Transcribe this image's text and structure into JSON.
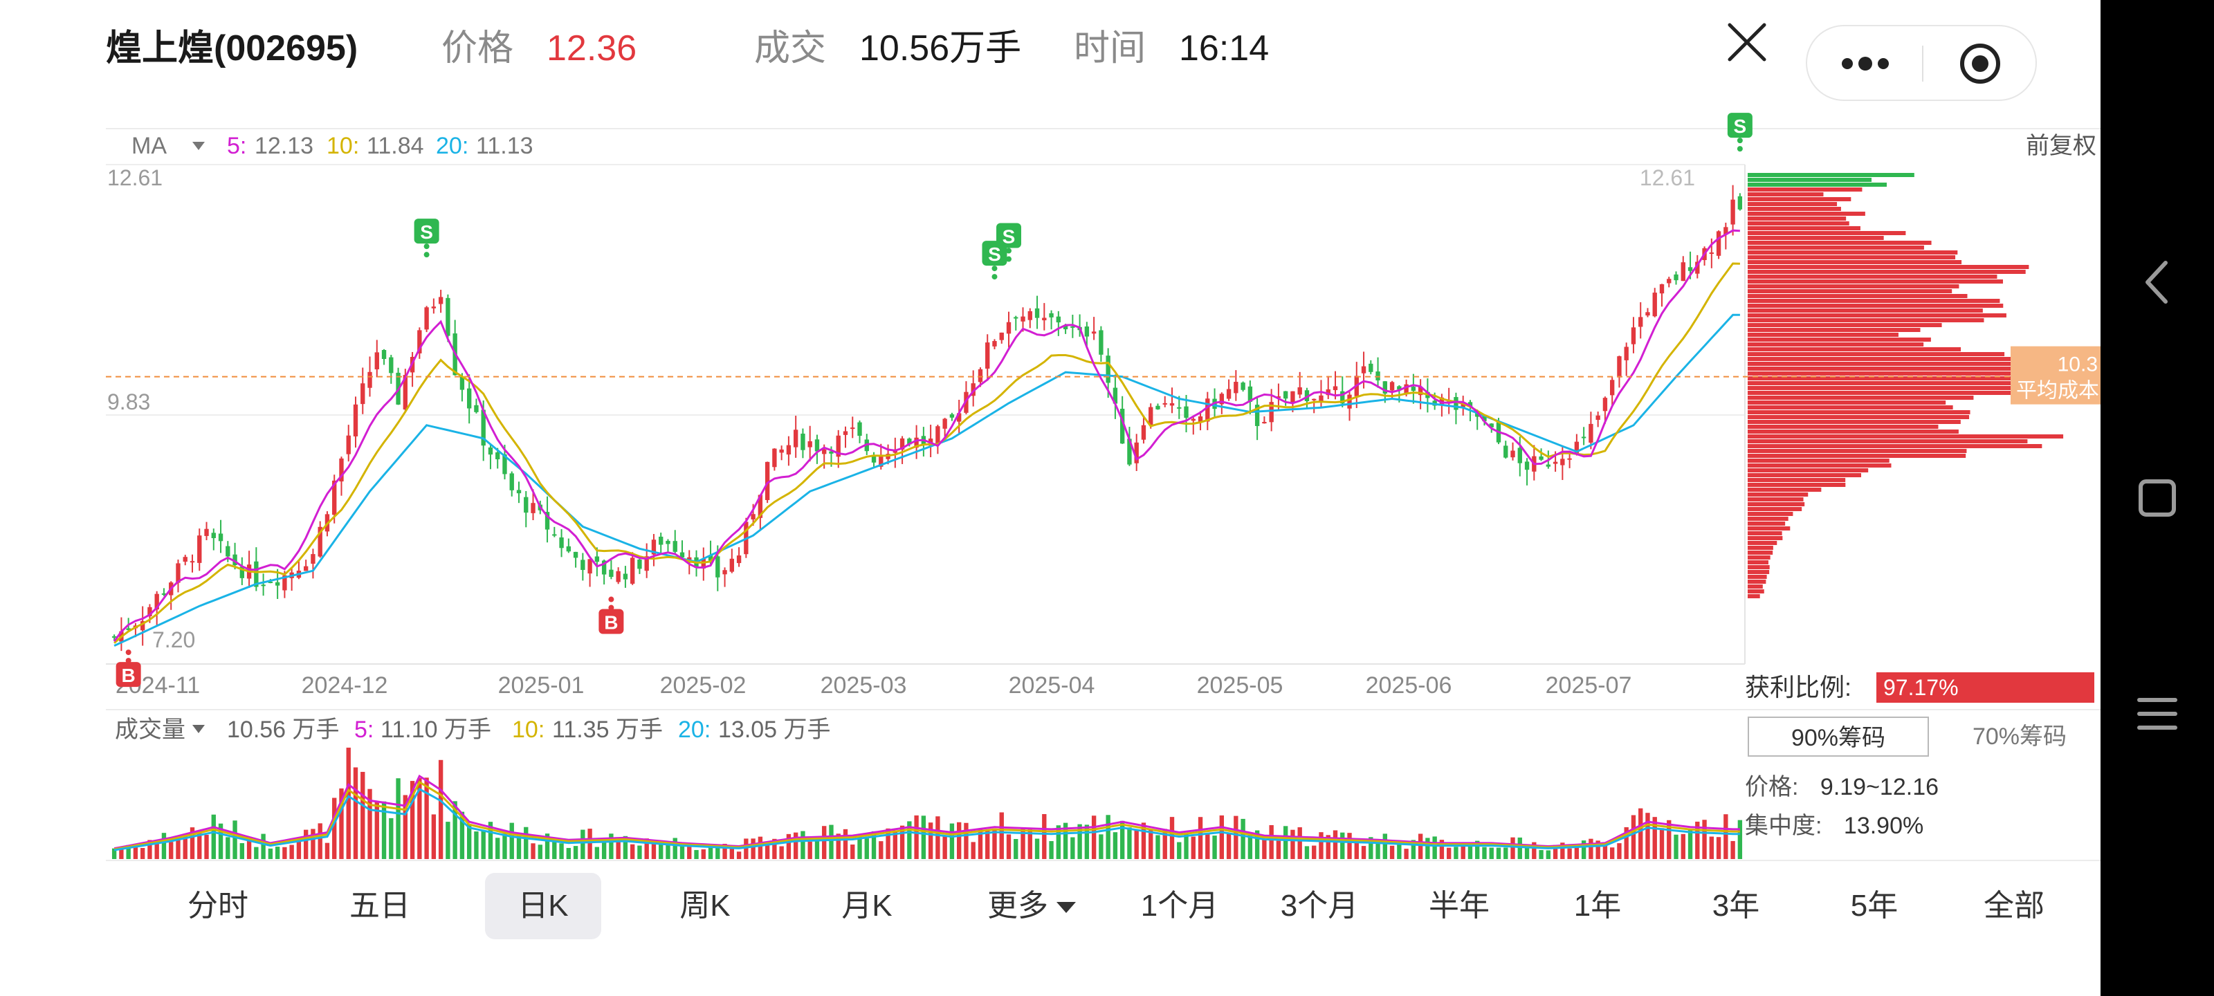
{
  "header": {
    "title": "煌上煌(002695)",
    "price_label": "价格",
    "price_value": "12.36",
    "volume_label": "成交",
    "volume_value": "10.56万手",
    "time_label": "时间",
    "time_value": "16:14"
  },
  "colors": {
    "up": "#e2383e",
    "down": "#2fb750",
    "ma5": "#d21fd2",
    "ma10": "#d4b400",
    "ma20": "#1ab3e6",
    "accent": "#e2383e"
  },
  "ma_legend": {
    "label": "MA",
    "ma5_label": "5:",
    "ma5_value": "12.13",
    "ma10_label": "10:",
    "ma10_value": "11.84",
    "ma20_label": "20:",
    "ma20_value": "11.13"
  },
  "adjust_label": "前复权",
  "volume_legend": {
    "label": "成交量",
    "total": "10.56 万手",
    "ma5_label": "5:",
    "ma5_value": "11.10 万手",
    "ma10_label": "10:",
    "ma10_value": "11.35 万手",
    "ma20_label": "20:",
    "ma20_value": "13.05 万手"
  },
  "avg_cost": {
    "value": "10.3",
    "label": "平均成本"
  },
  "chips": {
    "profit_label": "获利比例:",
    "profit_value": "97.17%",
    "profit_ratio": 0.9717,
    "tab_90": "90%筹码",
    "tab_70": "70%筹码",
    "price_label": "价格:",
    "price_range": "9.19~12.16",
    "concentration_label": "集中度:",
    "concentration_value": "13.90%"
  },
  "tabs": [
    {
      "label": "分时",
      "active": false
    },
    {
      "label": "五日",
      "active": false
    },
    {
      "label": "日K",
      "active": true
    },
    {
      "label": "周K",
      "active": false
    },
    {
      "label": "月K",
      "active": false
    },
    {
      "label": "更多",
      "active": false,
      "dropdown": true
    },
    {
      "label": "1个月",
      "active": false
    },
    {
      "label": "3个月",
      "active": false
    },
    {
      "label": "半年",
      "active": false
    },
    {
      "label": "1年",
      "active": false
    },
    {
      "label": "3年",
      "active": false
    },
    {
      "label": "5年",
      "active": false
    },
    {
      "label": "全部",
      "active": false
    }
  ],
  "chart_data": {
    "type": "candlestick",
    "x_tick_labels": [
      "2024-11",
      "2024-12",
      "2025-01",
      "2025-02",
      "2025-03",
      "2025-04",
      "2025-05",
      "2025-06",
      "2025-07"
    ],
    "y_tick_labels": [
      "12.61",
      "9.83"
    ],
    "y_range": [
      7.2,
      12.61
    ],
    "low_label": "7.20",
    "high_label": "12.61",
    "close_anchors": [
      [
        0,
        7.35
      ],
      [
        4,
        7.6
      ],
      [
        9,
        8.1
      ],
      [
        13,
        8.5
      ],
      [
        16,
        8.25
      ],
      [
        20,
        8.0
      ],
      [
        24,
        8.05
      ],
      [
        28,
        8.3
      ],
      [
        31,
        9.1
      ],
      [
        34,
        9.9
      ],
      [
        37,
        10.6
      ],
      [
        40,
        10.05
      ],
      [
        43,
        10.85
      ],
      [
        46,
        11.3
      ],
      [
        48,
        10.4
      ],
      [
        52,
        9.6
      ],
      [
        56,
        9.0
      ],
      [
        60,
        8.7
      ],
      [
        64,
        8.3
      ],
      [
        67,
        8.15
      ],
      [
        71,
        8.05
      ],
      [
        74,
        8.2
      ],
      [
        77,
        8.45
      ],
      [
        81,
        8.3
      ],
      [
        85,
        8.05
      ],
      [
        88,
        8.3
      ],
      [
        92,
        9.3
      ],
      [
        96,
        9.6
      ],
      [
        100,
        9.5
      ],
      [
        104,
        9.65
      ],
      [
        107,
        9.4
      ],
      [
        111,
        9.6
      ],
      [
        115,
        9.55
      ],
      [
        118,
        9.8
      ],
      [
        121,
        10.3
      ],
      [
        124,
        10.75
      ],
      [
        127,
        11.05
      ],
      [
        130,
        10.9
      ],
      [
        133,
        10.95
      ],
      [
        136,
        10.75
      ],
      [
        138,
        10.9
      ],
      [
        141,
        9.9
      ],
      [
        143,
        9.35
      ],
      [
        145,
        9.85
      ],
      [
        148,
        10.05
      ],
      [
        151,
        9.75
      ],
      [
        154,
        9.95
      ],
      [
        158,
        10.2
      ],
      [
        161,
        9.8
      ],
      [
        164,
        10.0
      ],
      [
        167,
        10.15
      ],
      [
        170,
        10.05
      ],
      [
        173,
        10.1
      ],
      [
        176,
        10.35
      ],
      [
        180,
        10.15
      ],
      [
        183,
        10.1
      ],
      [
        186,
        10.05
      ],
      [
        189,
        9.95
      ],
      [
        192,
        9.85
      ],
      [
        195,
        9.55
      ],
      [
        198,
        9.3
      ],
      [
        201,
        9.3
      ],
      [
        204,
        9.45
      ],
      [
        207,
        9.55
      ],
      [
        210,
        10.0
      ],
      [
        213,
        10.7
      ],
      [
        216,
        11.1
      ],
      [
        219,
        11.35
      ],
      [
        222,
        11.6
      ],
      [
        225,
        11.8
      ],
      [
        228,
        12.2
      ]
    ],
    "ma5_anchors": [
      [
        0,
        7.3
      ],
      [
        10,
        8.0
      ],
      [
        16,
        8.2
      ],
      [
        24,
        8.1
      ],
      [
        32,
        9.2
      ],
      [
        40,
        10.2
      ],
      [
        46,
        10.95
      ],
      [
        52,
        9.9
      ],
      [
        60,
        8.85
      ],
      [
        68,
        8.2
      ],
      [
        76,
        8.3
      ],
      [
        84,
        8.15
      ],
      [
        92,
        9.05
      ],
      [
        100,
        9.45
      ],
      [
        108,
        9.5
      ],
      [
        116,
        9.55
      ],
      [
        122,
        10.2
      ],
      [
        128,
        10.8
      ],
      [
        136,
        10.85
      ],
      [
        144,
        9.4
      ],
      [
        152,
        9.9
      ],
      [
        160,
        10.05
      ],
      [
        168,
        10.05
      ],
      [
        176,
        10.2
      ],
      [
        184,
        10.15
      ],
      [
        192,
        9.9
      ],
      [
        200,
        9.35
      ],
      [
        208,
        9.45
      ],
      [
        216,
        10.7
      ],
      [
        222,
        11.5
      ],
      [
        228,
        12.0
      ]
    ],
    "ma10_anchors": [
      [
        0,
        7.28
      ],
      [
        10,
        7.85
      ],
      [
        16,
        8.15
      ],
      [
        24,
        8.05
      ],
      [
        32,
        8.8
      ],
      [
        40,
        9.8
      ],
      [
        46,
        10.5
      ],
      [
        52,
        10.1
      ],
      [
        60,
        9.1
      ],
      [
        68,
        8.35
      ],
      [
        76,
        8.25
      ],
      [
        84,
        8.2
      ],
      [
        92,
        8.8
      ],
      [
        100,
        9.3
      ],
      [
        108,
        9.4
      ],
      [
        116,
        9.55
      ],
      [
        124,
        10.05
      ],
      [
        132,
        10.55
      ],
      [
        140,
        10.45
      ],
      [
        146,
        9.75
      ],
      [
        154,
        9.8
      ],
      [
        162,
        9.95
      ],
      [
        170,
        10.0
      ],
      [
        178,
        10.1
      ],
      [
        186,
        10.1
      ],
      [
        194,
        9.85
      ],
      [
        202,
        9.4
      ],
      [
        210,
        9.45
      ],
      [
        218,
        10.4
      ],
      [
        224,
        11.1
      ],
      [
        228,
        11.6
      ]
    ],
    "ma20_anchors": [
      [
        0,
        7.25
      ],
      [
        12,
        7.7
      ],
      [
        20,
        7.95
      ],
      [
        28,
        8.1
      ],
      [
        36,
        9.0
      ],
      [
        44,
        9.75
      ],
      [
        52,
        9.6
      ],
      [
        58,
        9.2
      ],
      [
        66,
        8.6
      ],
      [
        74,
        8.35
      ],
      [
        82,
        8.2
      ],
      [
        90,
        8.5
      ],
      [
        98,
        9.0
      ],
      [
        108,
        9.3
      ],
      [
        118,
        9.6
      ],
      [
        126,
        10.0
      ],
      [
        134,
        10.35
      ],
      [
        142,
        10.3
      ],
      [
        150,
        10.05
      ],
      [
        160,
        9.9
      ],
      [
        170,
        9.95
      ],
      [
        180,
        10.05
      ],
      [
        190,
        9.95
      ],
      [
        198,
        9.7
      ],
      [
        206,
        9.45
      ],
      [
        214,
        9.75
      ],
      [
        220,
        10.3
      ],
      [
        228,
        11.0
      ]
    ],
    "vol_anchors": [
      [
        0,
        0.1
      ],
      [
        8,
        0.2
      ],
      [
        14,
        0.3
      ],
      [
        22,
        0.15
      ],
      [
        30,
        0.25
      ],
      [
        33,
        0.7
      ],
      [
        36,
        0.55
      ],
      [
        41,
        0.5
      ],
      [
        43,
        0.78
      ],
      [
        46,
        0.65
      ],
      [
        50,
        0.35
      ],
      [
        56,
        0.25
      ],
      [
        64,
        0.18
      ],
      [
        72,
        0.2
      ],
      [
        80,
        0.15
      ],
      [
        88,
        0.12
      ],
      [
        96,
        0.2
      ],
      [
        104,
        0.22
      ],
      [
        112,
        0.3
      ],
      [
        118,
        0.25
      ],
      [
        124,
        0.3
      ],
      [
        132,
        0.28
      ],
      [
        138,
        0.3
      ],
      [
        142,
        0.35
      ],
      [
        150,
        0.25
      ],
      [
        156,
        0.3
      ],
      [
        162,
        0.22
      ],
      [
        170,
        0.2
      ],
      [
        178,
        0.18
      ],
      [
        186,
        0.15
      ],
      [
        194,
        0.15
      ],
      [
        202,
        0.12
      ],
      [
        210,
        0.15
      ],
      [
        216,
        0.35
      ],
      [
        222,
        0.3
      ],
      [
        228,
        0.28
      ]
    ],
    "markers": [
      {
        "type": "B",
        "index": 2
      },
      {
        "type": "B",
        "index": 70
      },
      {
        "type": "S",
        "index": 44
      },
      {
        "type": "S",
        "index": 124
      },
      {
        "type": "S",
        "index": 126
      },
      {
        "type": "S",
        "index": 229
      }
    ],
    "chip_profile_anchors": [
      [
        12.61,
        0.45
      ],
      [
        12.4,
        0.25
      ],
      [
        12.0,
        0.35
      ],
      [
        11.8,
        0.55
      ],
      [
        11.5,
        0.75
      ],
      [
        11.3,
        0.6
      ],
      [
        11.1,
        0.8
      ],
      [
        10.9,
        0.55
      ],
      [
        10.7,
        0.45
      ],
      [
        10.5,
        0.85
      ],
      [
        10.35,
        1.0
      ],
      [
        10.2,
        0.95
      ],
      [
        10.0,
        0.6
      ],
      [
        9.8,
        0.55
      ],
      [
        9.6,
        0.85
      ],
      [
        9.4,
        0.5
      ],
      [
        9.2,
        0.3
      ],
      [
        9.0,
        0.2
      ],
      [
        8.7,
        0.12
      ],
      [
        8.4,
        0.08
      ],
      [
        8.0,
        0.05
      ],
      [
        7.7,
        0.03
      ]
    ],
    "total_candles": 230,
    "seed": 7
  }
}
